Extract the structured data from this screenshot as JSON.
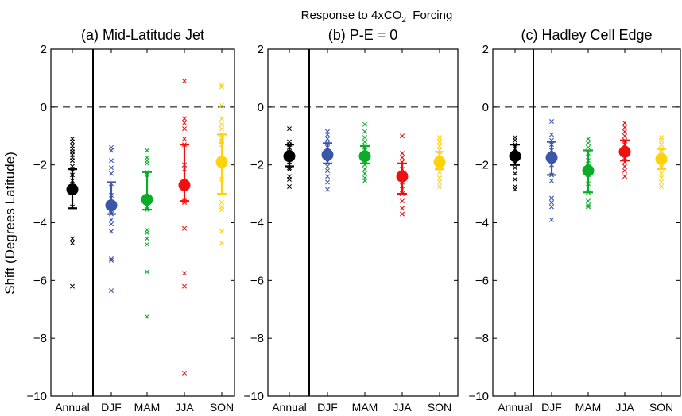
{
  "figure": {
    "title_main": "Response to 4xCO",
    "title_sub": "2",
    "title_tail": "  Forcing",
    "ylabel": "Shift (Degrees Latitude)"
  },
  "chart_data": [
    {
      "type": "scatter",
      "title": "(a) Mid-Latitude Jet",
      "categories": [
        "Annual",
        "DJF",
        "MAM",
        "JJA",
        "SON"
      ],
      "ylim": [
        -10,
        2
      ],
      "yticks": [
        -10,
        -8,
        -6,
        -4,
        -2,
        0,
        2
      ],
      "reference_line": 0,
      "series": [
        {
          "category": "Annual",
          "color": "#000000",
          "mean": -2.85,
          "lower": -3.5,
          "upper": -2.15,
          "models": [
            -1.1,
            -1.2,
            -1.35,
            -1.45,
            -1.55,
            -1.65,
            -1.75,
            -1.85,
            -2.05,
            -2.15,
            -2.35,
            -2.55,
            -3.45,
            -4.55,
            -4.7,
            -6.2
          ]
        },
        {
          "category": "DJF",
          "color": "#3b55a8",
          "mean": -3.4,
          "lower": -3.7,
          "upper": -2.6,
          "models": [
            -1.4,
            -1.5,
            -1.85,
            -2.1,
            -2.3,
            -2.65,
            -3.05,
            -3.55,
            -3.7,
            -3.9,
            -4.05,
            -4.3,
            -5.25,
            -5.3,
            -6.35
          ]
        },
        {
          "category": "MAM",
          "color": "#0aad28",
          "mean": -3.2,
          "lower": -3.55,
          "upper": -2.25,
          "models": [
            -1.5,
            -1.75,
            -1.85,
            -1.95,
            -2.25,
            -2.35,
            -3.3,
            -3.45,
            -3.55,
            -4.25,
            -4.35,
            -4.55,
            -4.75,
            -5.7,
            -7.25
          ]
        },
        {
          "category": "JJA",
          "color": "#ee1111",
          "mean": -2.7,
          "lower": -3.25,
          "upper": -1.3,
          "models": [
            0.9,
            -0.4,
            -0.55,
            -0.75,
            -1.1,
            -1.3,
            -2.0,
            -2.15,
            -3.25,
            -3.3,
            -4.2,
            -5.75,
            -6.2,
            -9.2
          ]
        },
        {
          "category": "SON",
          "color": "#ffd20a",
          "mean": -1.9,
          "lower": -3.0,
          "upper": -0.95,
          "models": [
            0.75,
            0.7,
            0.05,
            -0.4,
            -0.6,
            -0.75,
            -0.95,
            -1.15,
            -1.2,
            -1.3,
            -2.5,
            -3.3,
            -3.45,
            -3.55,
            -4.3,
            -4.7
          ]
        }
      ]
    },
    {
      "type": "scatter",
      "title": "(b) P-E = 0",
      "categories": [
        "Annual",
        "DJF",
        "MAM",
        "JJA",
        "SON"
      ],
      "ylim": [
        -10,
        2
      ],
      "yticks": [
        -10,
        -8,
        -6,
        -4,
        -2,
        0,
        2
      ],
      "reference_line": 0,
      "series": [
        {
          "category": "Annual",
          "color": "#000000",
          "mean": -1.7,
          "lower": -2.05,
          "upper": -1.3,
          "models": [
            -0.75,
            -1.2,
            -1.3,
            -1.4,
            -1.55,
            -1.7,
            -1.9,
            -2.0,
            -2.1,
            -2.15,
            -2.4,
            -2.5,
            -2.75
          ]
        },
        {
          "category": "DJF",
          "color": "#3b55a8",
          "mean": -1.65,
          "lower": -1.95,
          "upper": -1.25,
          "models": [
            -0.85,
            -0.95,
            -1.1,
            -1.25,
            -1.4,
            -1.55,
            -1.75,
            -1.9,
            -2.05,
            -2.2,
            -2.4,
            -2.6,
            -2.85
          ]
        },
        {
          "category": "MAM",
          "color": "#0aad28",
          "mean": -1.7,
          "lower": -1.95,
          "upper": -1.35,
          "models": [
            -0.6,
            -0.85,
            -1.05,
            -1.2,
            -1.35,
            -1.5,
            -1.7,
            -1.85,
            -2.0,
            -2.15,
            -2.3,
            -2.45,
            -2.55
          ]
        },
        {
          "category": "JJA",
          "color": "#ee1111",
          "mean": -2.4,
          "lower": -3.0,
          "upper": -1.95,
          "models": [
            -1.0,
            -1.6,
            -1.75,
            -1.9,
            -2.15,
            -2.35,
            -2.6,
            -2.85,
            -3.0,
            -3.25,
            -3.5,
            -3.7
          ]
        },
        {
          "category": "SON",
          "color": "#ffd20a",
          "mean": -1.9,
          "lower": -2.15,
          "upper": -1.55,
          "models": [
            -1.05,
            -1.2,
            -1.35,
            -1.5,
            -1.65,
            -1.8,
            -1.95,
            -2.1,
            -2.25,
            -2.45,
            -2.6,
            -2.75
          ]
        }
      ]
    },
    {
      "type": "scatter",
      "title": "(c) Hadley Cell Edge",
      "categories": [
        "Annual",
        "DJF",
        "MAM",
        "JJA",
        "SON"
      ],
      "ylim": [
        -10,
        2
      ],
      "yticks": [
        -10,
        -8,
        -6,
        -4,
        -2,
        0,
        2
      ],
      "reference_line": 0,
      "series": [
        {
          "category": "Annual",
          "color": "#000000",
          "mean": -1.7,
          "lower": -2.0,
          "upper": -1.3,
          "models": [
            -1.05,
            -1.15,
            -1.3,
            -1.45,
            -1.6,
            -1.8,
            -1.95,
            -2.1,
            -2.3,
            -2.5,
            -2.75,
            -2.85
          ]
        },
        {
          "category": "DJF",
          "color": "#3b55a8",
          "mean": -1.75,
          "lower": -2.35,
          "upper": -1.2,
          "models": [
            -0.5,
            -0.95,
            -1.15,
            -1.3,
            -1.5,
            -1.7,
            -2.0,
            -2.35,
            -2.55,
            -3.15,
            -3.3,
            -3.45,
            -3.9
          ]
        },
        {
          "category": "MAM",
          "color": "#0aad28",
          "mean": -2.2,
          "lower": -2.95,
          "upper": -1.5,
          "models": [
            -1.1,
            -1.25,
            -1.4,
            -1.6,
            -1.85,
            -2.05,
            -2.35,
            -2.65,
            -2.95,
            -3.25,
            -3.4,
            -3.45
          ]
        },
        {
          "category": "JJA",
          "color": "#ee1111",
          "mean": -1.55,
          "lower": -1.85,
          "upper": -1.15,
          "models": [
            -0.55,
            -0.7,
            -0.85,
            -1.0,
            -1.15,
            -1.3,
            -1.55,
            -1.75,
            -1.9,
            -2.05,
            -2.2,
            -2.4
          ]
        },
        {
          "category": "SON",
          "color": "#ffd20a",
          "mean": -1.8,
          "lower": -2.15,
          "upper": -1.45,
          "models": [
            -1.05,
            -1.15,
            -1.3,
            -1.45,
            -1.65,
            -1.8,
            -1.95,
            -2.1,
            -2.3,
            -2.45,
            -2.6,
            -2.75
          ]
        }
      ]
    }
  ]
}
